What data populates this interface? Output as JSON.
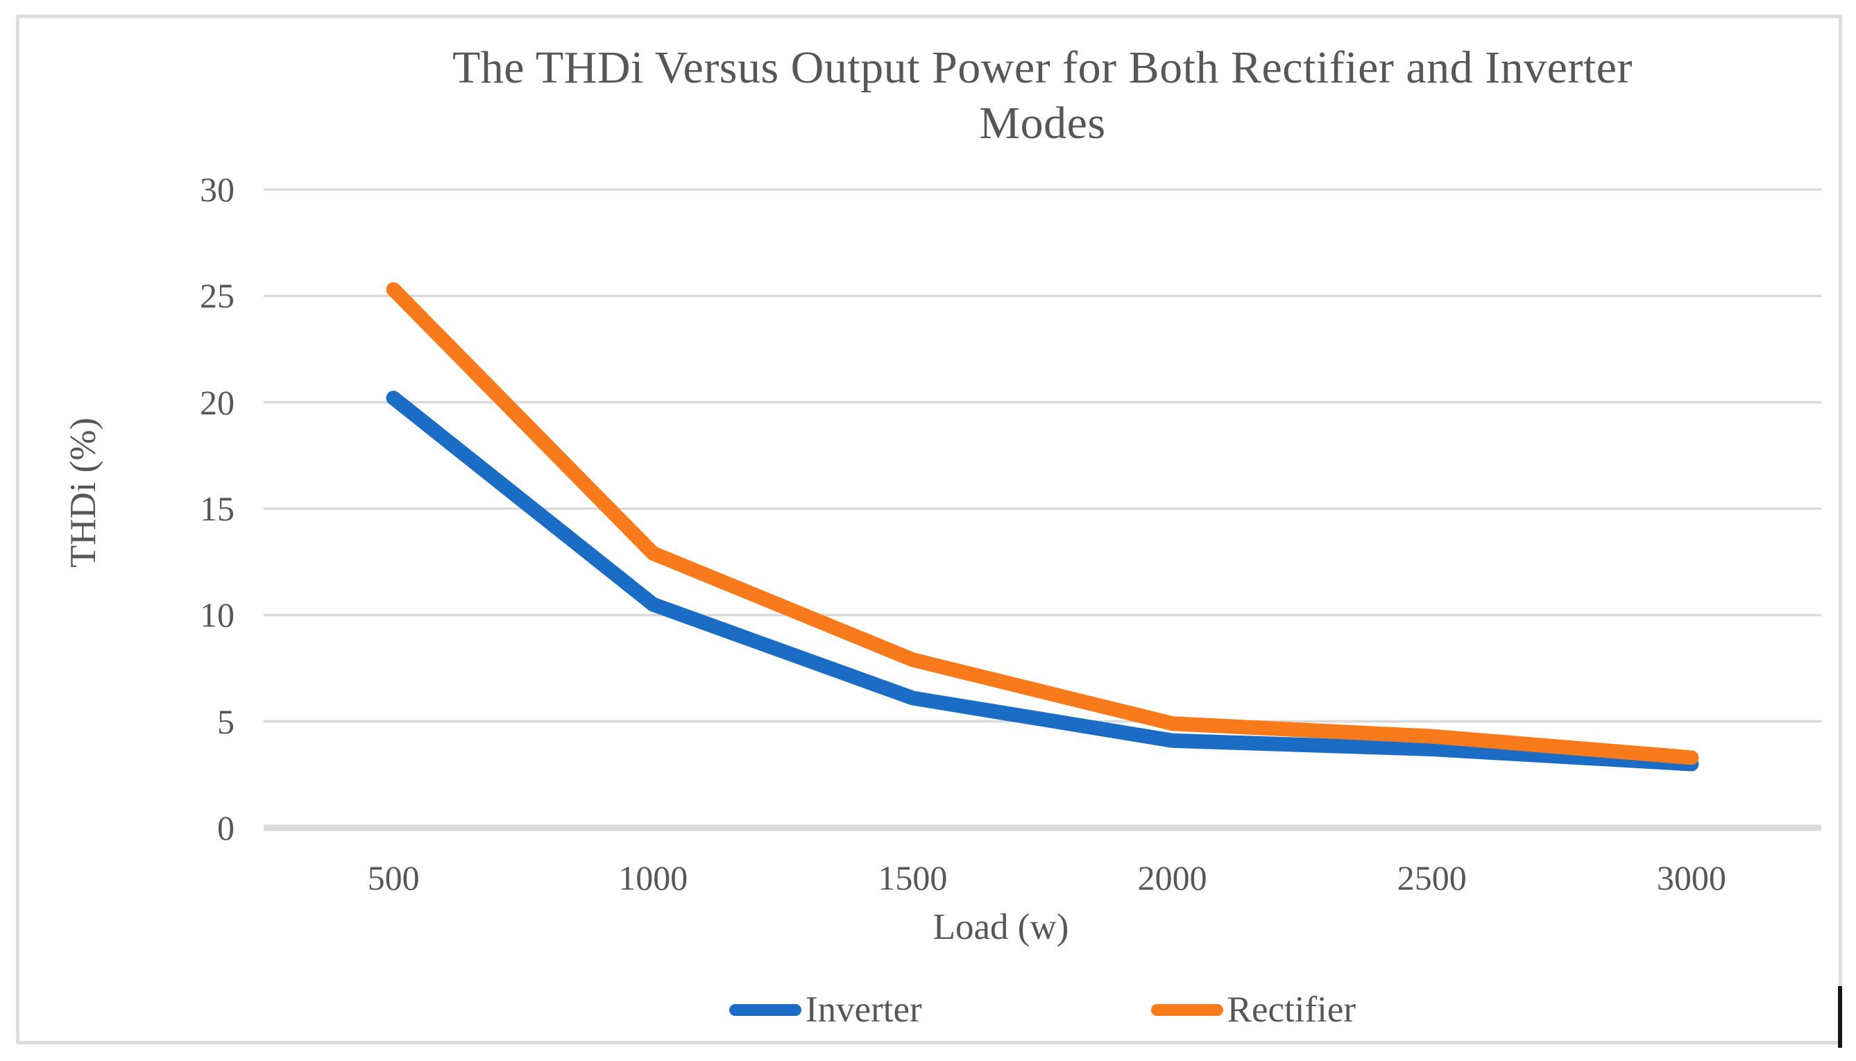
{
  "chart_data": {
    "type": "line",
    "title": "The THDi Versus Output Power for Both Rectifier and Inverter Modes",
    "title_lines": [
      "The THDi Versus Output Power for Both Rectifier and Inverter",
      "Modes"
    ],
    "xlabel": "Load (w)",
    "ylabel": "THDi (%)",
    "categories": [
      "500",
      "1000",
      "1500",
      "2000",
      "2500",
      "3000"
    ],
    "series": [
      {
        "name": "Inverter",
        "color": "#1B6CC4",
        "values": [
          20.2,
          10.5,
          6.1,
          4.1,
          3.7,
          3.0
        ]
      },
      {
        "name": "Rectifier",
        "color": "#F97A1A",
        "values": [
          25.3,
          12.9,
          7.9,
          4.9,
          4.3,
          3.3
        ]
      }
    ],
    "y_ticks": [
      0,
      5,
      10,
      15,
      20,
      25,
      30
    ],
    "ylim": [
      0,
      30
    ],
    "grid": true,
    "legend_position": "bottom",
    "gridline_color": "#D9D9D9",
    "axis_line_color": "#D9D9D9",
    "text_color": "#575757",
    "background_color": "#FFFFFF",
    "border_color": "#DCDCDC"
  }
}
